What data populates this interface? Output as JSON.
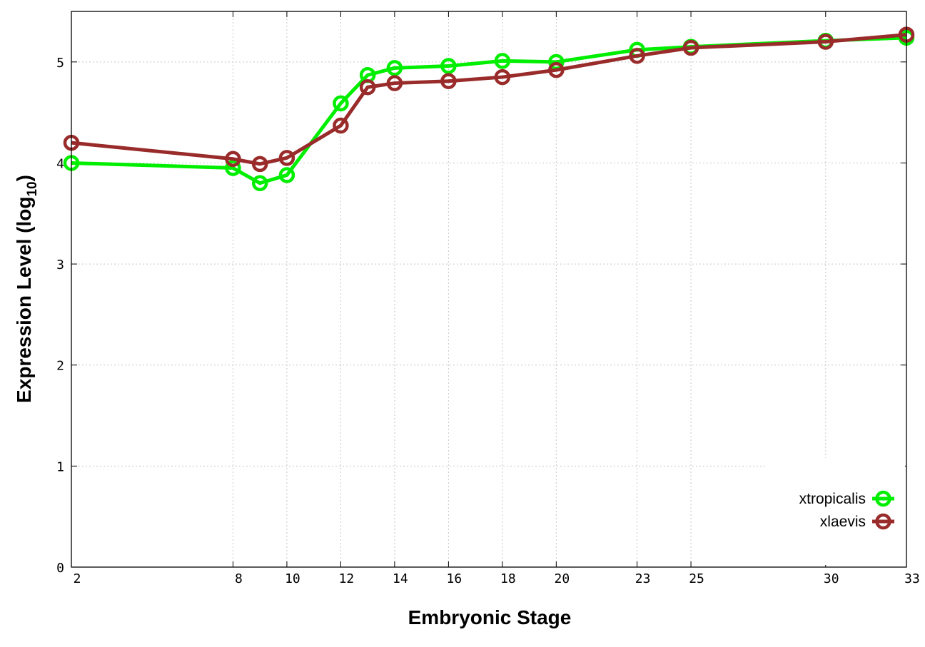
{
  "chart_data": {
    "type": "line",
    "xlabel": "Embryonic Stage",
    "ylabel_main": "Expression Level (log",
    "ylabel_sub": "10",
    "ylabel_close": ")",
    "x_ticks": [
      2,
      8,
      10,
      12,
      14,
      16,
      18,
      20,
      23,
      25,
      30,
      33
    ],
    "x_tick_labels": [
      "2",
      "8",
      "10",
      "12",
      "14",
      "16",
      "18",
      "20",
      "23",
      "25",
      "30",
      "33"
    ],
    "y_ticks": [
      0,
      1,
      2,
      3,
      4,
      5
    ],
    "y_tick_labels": [
      "0",
      "1",
      "2",
      "3",
      "4",
      "5"
    ],
    "ylim": [
      0,
      5.5
    ],
    "grid": true,
    "legend_position": "bottom-right",
    "series": [
      {
        "name": "xtropicalis",
        "color": "#00ee00",
        "x": [
          2,
          8,
          9,
          10,
          12,
          13,
          14,
          16,
          18,
          20,
          23,
          25,
          30,
          33
        ],
        "values": [
          4.0,
          3.95,
          3.8,
          3.88,
          4.59,
          4.87,
          4.94,
          4.96,
          5.01,
          5.0,
          5.12,
          5.15,
          5.21,
          5.24
        ]
      },
      {
        "name": "xlaevis",
        "color": "#992b2b",
        "x": [
          2,
          8,
          9,
          10,
          12,
          13,
          14,
          16,
          18,
          20,
          23,
          25,
          30,
          33
        ],
        "values": [
          4.2,
          4.04,
          3.99,
          4.05,
          4.37,
          4.75,
          4.79,
          4.81,
          4.85,
          4.92,
          5.06,
          5.14,
          5.2,
          5.27
        ]
      }
    ]
  }
}
